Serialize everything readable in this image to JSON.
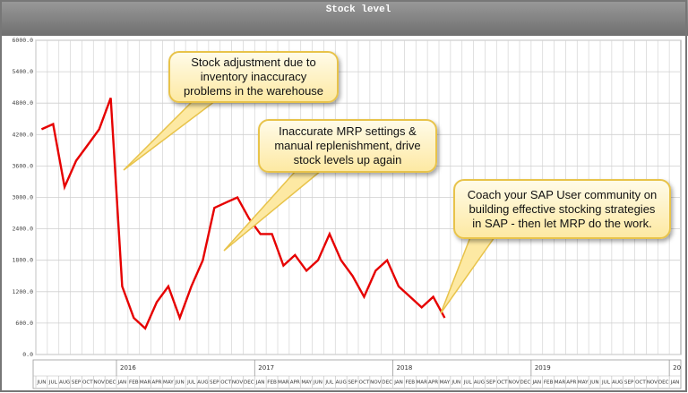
{
  "chart_data": {
    "type": "line",
    "title": "Stock level",
    "xlim": [
      "2015-06",
      "2020-01"
    ],
    "month_labels": [
      "JUN",
      "JUL",
      "AUG",
      "SEP",
      "OCT",
      "NOV",
      "DEC",
      "JAN",
      "FEB",
      "MAR",
      "APR",
      "MAY",
      "JUN",
      "JUL",
      "AUG",
      "SEP",
      "OCT",
      "NOV",
      "DEC",
      "JAN",
      "FEB",
      "MAR",
      "APR",
      "MAY",
      "JUN",
      "JUL",
      "AUG",
      "SEP",
      "OCT",
      "NOV",
      "DEC",
      "JAN",
      "FEB",
      "MAR",
      "APR",
      "MAY",
      "JUN",
      "JUL",
      "AUG",
      "SEP",
      "OCT",
      "NOV",
      "DEC",
      "JAN",
      "FEB",
      "MAR",
      "APR",
      "MAY",
      "JUN",
      "JUL",
      "AUG",
      "SEP",
      "OCT",
      "NOV",
      "DEC",
      "JAN"
    ],
    "year_labels": [
      {
        "value": "2016-01",
        "label": "2016"
      },
      {
        "value": "2017-01",
        "label": "2017"
      },
      {
        "value": "2018-01",
        "label": "2018"
      },
      {
        "value": "2019-01",
        "label": "2019"
      },
      {
        "value": "2020-01",
        "label": "20"
      }
    ],
    "ylim": [
      0,
      6000
    ],
    "yticks": [
      {
        "value": 0,
        "label": "0.0"
      },
      {
        "value": 600,
        "label": "600.0"
      },
      {
        "value": 1200,
        "label": "1200.0"
      },
      {
        "value": 1800,
        "label": "1800.0"
      },
      {
        "value": 2400,
        "label": "2400.0"
      },
      {
        "value": 3000,
        "label": "3000.0"
      },
      {
        "value": 3600,
        "label": "3600.0"
      },
      {
        "value": 4200,
        "label": "4200.0"
      },
      {
        "value": 4800,
        "label": "4800.0"
      },
      {
        "value": 5400,
        "label": "5400.0"
      },
      {
        "value": 6000,
        "label": "6000.0"
      }
    ],
    "grid": true,
    "x": [
      "2015-06",
      "2015-07",
      "2015-08",
      "2015-09",
      "2015-10",
      "2015-11",
      "2015-12",
      "2016-01",
      "2016-02",
      "2016-03",
      "2016-04",
      "2016-05",
      "2016-06",
      "2016-07",
      "2016-08",
      "2016-09",
      "2016-10",
      "2016-11",
      "2016-12",
      "2017-01",
      "2017-02",
      "2017-03",
      "2017-04",
      "2017-05",
      "2017-06",
      "2017-07",
      "2017-08",
      "2017-09",
      "2017-10",
      "2017-11",
      "2017-12",
      "2018-01",
      "2018-02",
      "2018-03",
      "2018-04",
      "2018-05"
    ],
    "series": [
      {
        "color": "#e60000",
        "values": [
          4300,
          4400,
          3200,
          3700,
          4000,
          4300,
          4900,
          1300,
          700,
          500,
          1000,
          1300,
          700,
          1300,
          1800,
          2800,
          2900,
          3000,
          2600,
          2300,
          2300,
          1700,
          1900,
          1600,
          1800,
          2300,
          1800,
          1500,
          1100,
          1600,
          1800,
          1300,
          1100,
          900,
          1100,
          700
        ]
      }
    ],
    "annotations": [
      {
        "text": "Stock adjustment due to inventory inaccuracy problems in the warehouse"
      },
      {
        "text": "Inaccurate MRP settings & manual replenishment, drive stock levels up again"
      },
      {
        "text": "Coach your SAP User community on building effective stocking strategies in SAP - then let MRP do the work."
      }
    ]
  }
}
